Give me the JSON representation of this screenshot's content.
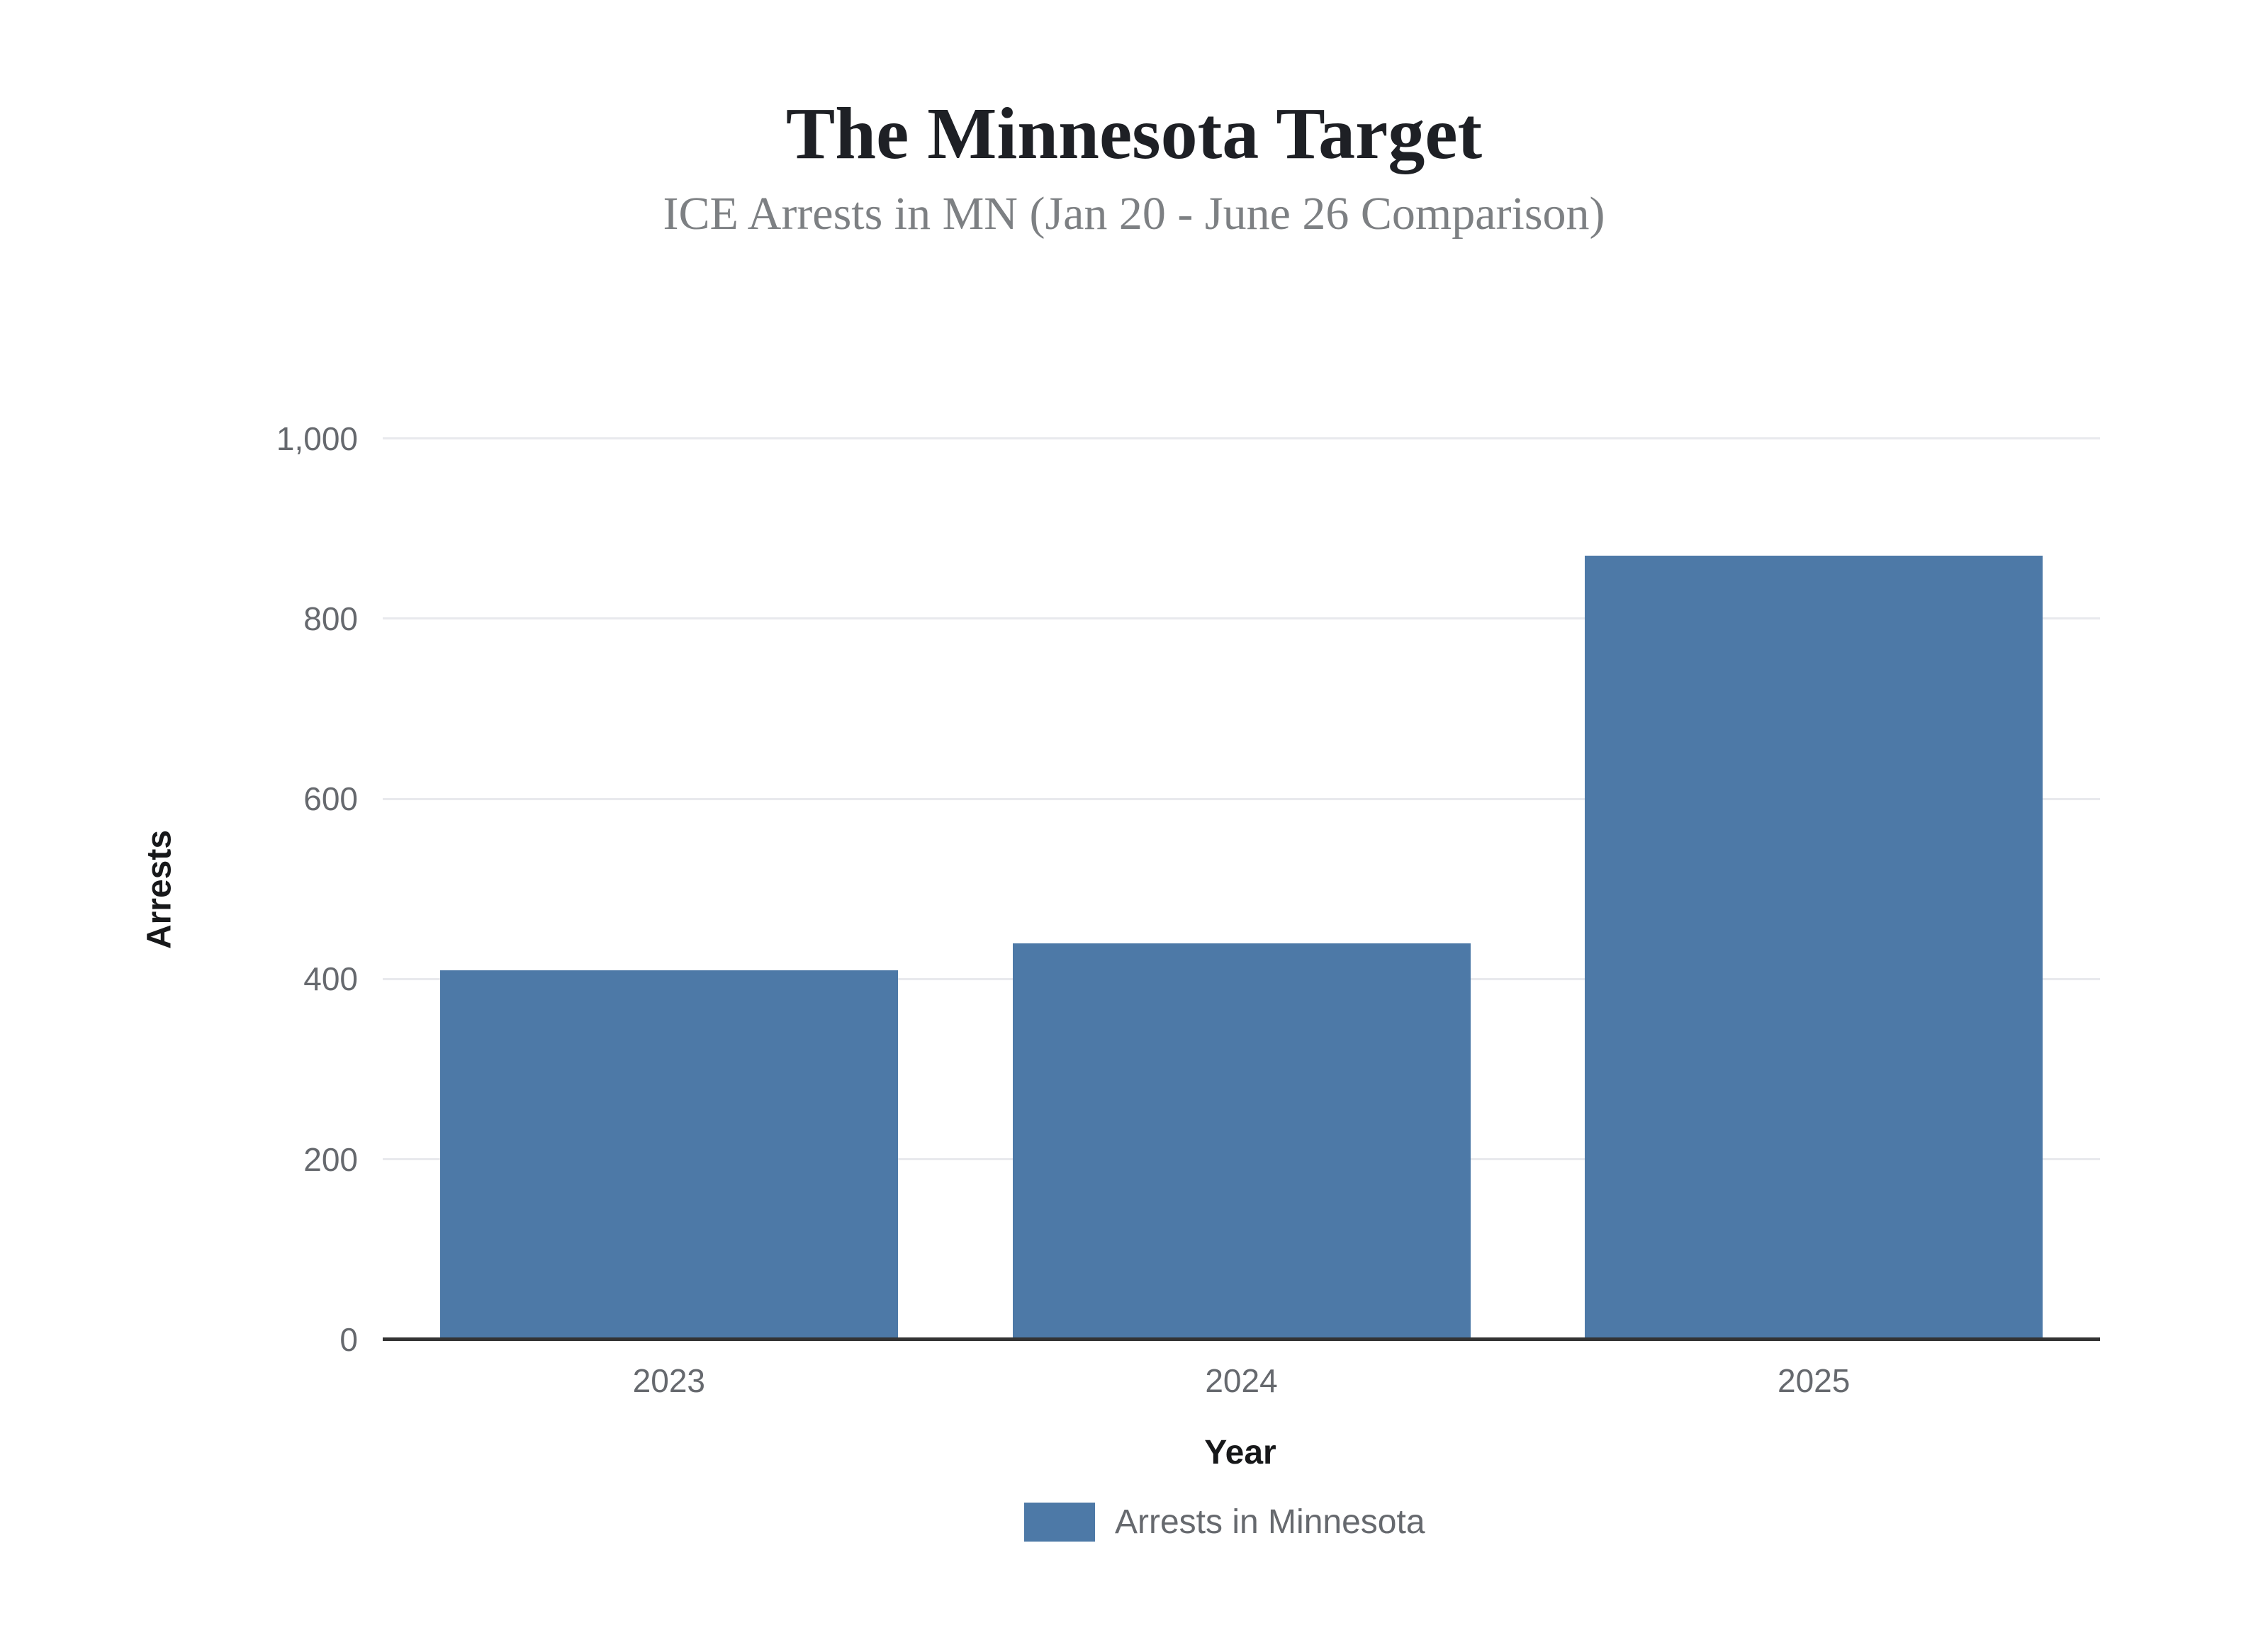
{
  "header": {
    "title": "The Minnesota Target",
    "subtitle": "ICE Arrests in MN (Jan 20 - June 26 Comparison)"
  },
  "chart_data": {
    "type": "bar",
    "title": "The Minnesota Target",
    "subtitle": "ICE Arrests in MN (Jan 20 - June 26 Comparison)",
    "categories": [
      "2023",
      "2024",
      "2025"
    ],
    "series": [
      {
        "name": "Arrests in Minnesota",
        "values": [
          410,
          440,
          870
        ],
        "color": "#4d79a7"
      }
    ],
    "xlabel": "Year",
    "ylabel": "Arrests",
    "ylim": [
      0,
      1000
    ],
    "yticks": {
      "values": [
        0,
        200,
        400,
        600,
        800,
        1000
      ],
      "labels": [
        "0",
        "200",
        "400",
        "600",
        "800",
        "1,000"
      ]
    },
    "grid": "horizontal",
    "legend": {
      "position": "bottom",
      "entries": [
        {
          "label": "Arrests in Minnesota",
          "color": "#4d79a7"
        }
      ]
    }
  },
  "colors": {
    "bar": "#4d79a7",
    "gridline": "#e8e9ed",
    "axis_line": "#333333",
    "tick_text": "#66696e",
    "title_text": "#1e2025",
    "subtitle_text": "#7d8083",
    "axis_title_text": "#17181a",
    "background": "#ffffff"
  }
}
